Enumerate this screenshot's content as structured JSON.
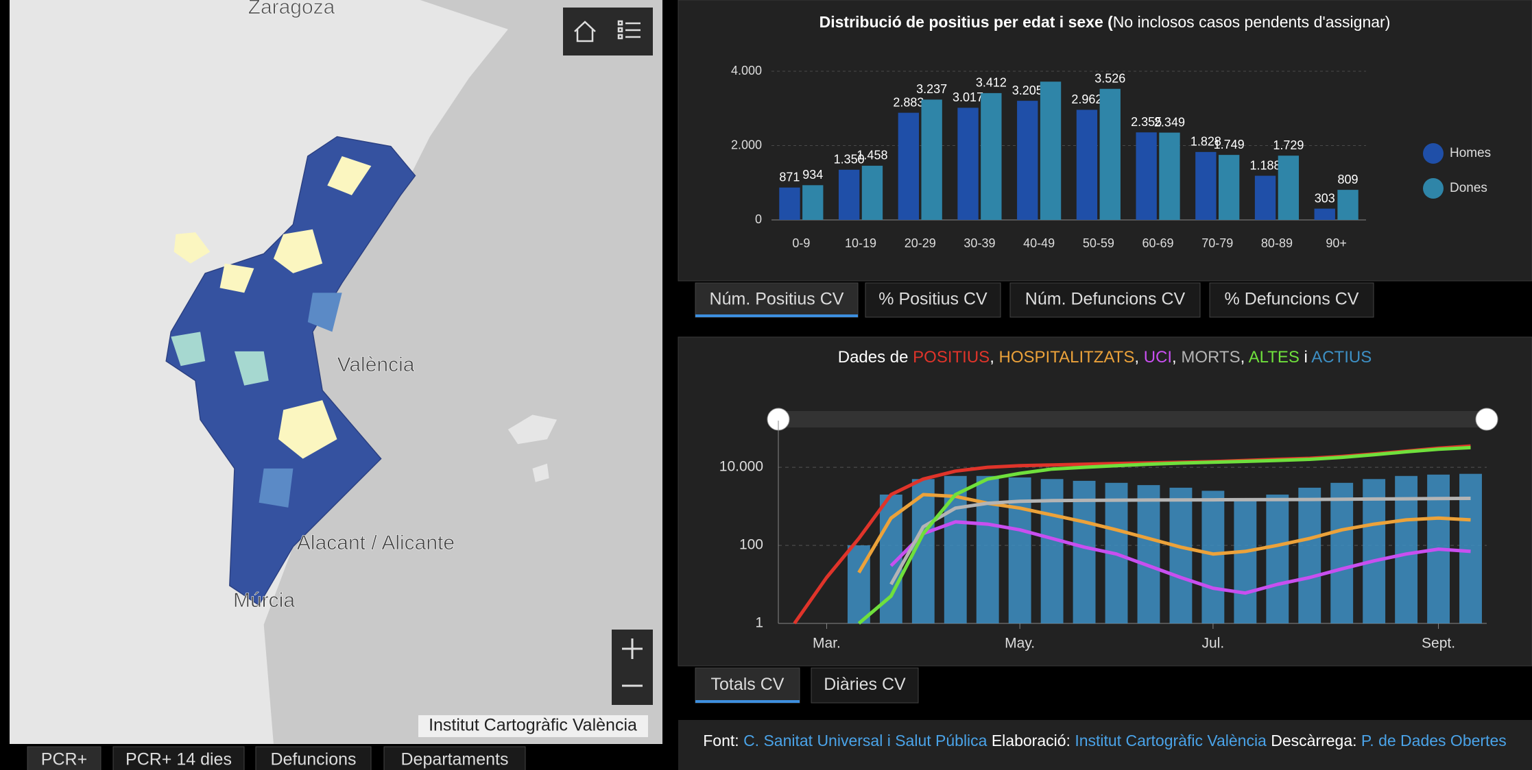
{
  "map": {
    "labels": [
      "Zaragoza",
      "València",
      "Alacant / Alicante",
      "Múrcia"
    ],
    "attribution": "Institut Cartogràfic València",
    "tabs": [
      "PCR+",
      "PCR+ 14 dies",
      "Defuncions",
      "Departaments"
    ]
  },
  "chart_data": [
    {
      "type": "bar",
      "title": "Distribució de positius per edat i sexe (",
      "subtitle": "No inclosos casos pendents d'assignar)",
      "categories": [
        "0-9",
        "10-19",
        "20-29",
        "30-39",
        "40-49",
        "50-59",
        "60-69",
        "70-79",
        "80-89",
        "90+"
      ],
      "series": [
        {
          "name": "Homes",
          "color": "#1f4fa8",
          "values": [
            871,
            1350,
            2883,
            3017,
            3205,
            2962,
            2355,
            1828,
            1188,
            303
          ],
          "value_labels": [
            "871",
            "1.350",
            "2.883",
            "3.017",
            "3.205",
            "2.962",
            "2.355",
            "1.828",
            "1.188",
            "303"
          ]
        },
        {
          "name": "Dones",
          "color": "#2f85a8",
          "values": [
            934,
            1458,
            3237,
            3412,
            3720,
            3526,
            2349,
            1749,
            1729,
            809
          ],
          "value_labels": [
            "934",
            "1.458",
            "3.237",
            "3.412",
            null,
            "3.526",
            "2.349",
            "1.749",
            "1.729",
            "809"
          ]
        }
      ],
      "ylim": [
        0,
        4000
      ],
      "yticks": [
        0,
        {
          "value": 2000,
          "label": "2.000"
        },
        {
          "value": 4000,
          "label": "4.000"
        }
      ],
      "grid": true,
      "legend": "right"
    },
    {
      "type": "line",
      "title": "Dades de ",
      "separators": [
        ", ",
        ", ",
        ", ",
        ", ",
        " i "
      ],
      "log_scale": true,
      "grid": true,
      "categories": [
        null,
        "Mar.",
        null,
        null,
        null,
        null,
        null,
        "May.",
        null,
        null,
        null,
        null,
        null,
        "Jul.",
        null,
        null,
        null,
        null,
        null,
        null,
        "Sept.",
        null
      ],
      "series": [
        {
          "name": "POSITIUS",
          "color": "#e0342a",
          "type": "line",
          "values": [
            1,
            15,
            150,
            2000,
            5000,
            8000,
            10000,
            11000,
            11500,
            12000,
            12500,
            13000,
            13500,
            14000,
            15000,
            16000,
            17000,
            19000,
            22000,
            26000,
            31000,
            35000
          ]
        },
        {
          "name": "HOSPITALITZATS",
          "color": "#eca23a",
          "type": "line",
          "values": [
            null,
            null,
            20,
            500,
            2000,
            1800,
            1200,
            900,
            600,
            400,
            250,
            150,
            90,
            60,
            70,
            100,
            150,
            250,
            350,
            450,
            500,
            450
          ]
        },
        {
          "name": "UCI",
          "color": "#c84ff0",
          "type": "line",
          "values": [
            null,
            null,
            null,
            30,
            200,
            400,
            350,
            250,
            150,
            90,
            60,
            30,
            15,
            8,
            6,
            10,
            15,
            25,
            40,
            60,
            80,
            70
          ]
        },
        {
          "name": "MORTS",
          "color": "#b4b4b4",
          "type": "line",
          "values": [
            null,
            null,
            null,
            10,
            300,
            900,
            1200,
            1350,
            1400,
            1420,
            1440,
            1450,
            1460,
            1470,
            1480,
            1490,
            1500,
            1520,
            1540,
            1560,
            1580,
            1600
          ]
        },
        {
          "name": "ALTES",
          "color": "#6fe03c",
          "type": "line",
          "values": [
            null,
            null,
            1,
            5,
            200,
            2000,
            5000,
            7000,
            9000,
            10000,
            11000,
            12000,
            12800,
            13500,
            14200,
            15000,
            16000,
            18000,
            21000,
            25000,
            29000,
            32000
          ]
        },
        {
          "name": "ACTIUS",
          "color": "#3d8fc4",
          "type": "bar",
          "values": [
            null,
            null,
            100,
            2000,
            5000,
            6000,
            6000,
            5500,
            5000,
            4500,
            4000,
            3500,
            3000,
            2500,
            1500,
            2000,
            3000,
            4000,
            5000,
            6000,
            6500,
            6800
          ]
        }
      ],
      "ylim": [
        1,
        70000
      ],
      "yticks": [
        1,
        100,
        {
          "value": 10000,
          "label": "10.000"
        }
      ]
    }
  ],
  "bar_tabs": [
    "Núm. Positius CV",
    "% Positius CV",
    "Núm. Defuncions CV",
    "% Defuncions CV"
  ],
  "line_tabs": [
    "Totals CV",
    "Diàries CV"
  ],
  "footer": [
    {
      "label": "Font: ",
      "source": "C. Sanitat Universal i Salut Pública"
    },
    {
      "label": " Elaboració: ",
      "source": "Institut Cartogràfic València"
    },
    {
      "label": " Descàrrega: ",
      "source": "P. de Dades Obertes"
    }
  ]
}
